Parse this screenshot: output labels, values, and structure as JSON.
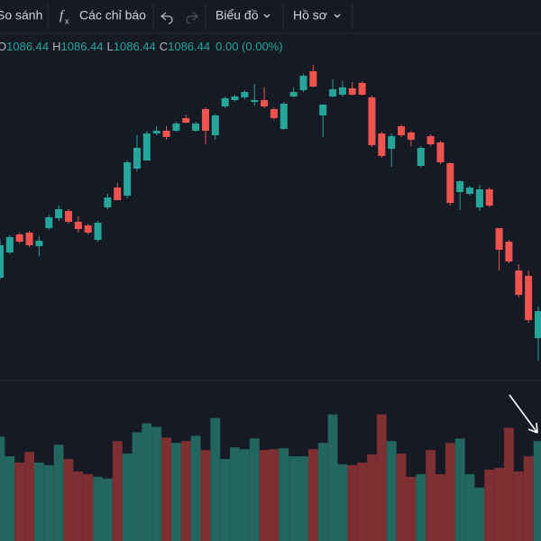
{
  "toolbar": {
    "compare": "So sánh",
    "indicators": "Các chỉ báo",
    "chart": "Biểu đồ",
    "profile": "Hồ sơ"
  },
  "chart_data": {
    "type": "candlestick",
    "legend": {
      "open_label": "O",
      "open": 1086.44,
      "high_label": "H",
      "high": 1086.44,
      "low_label": "L",
      "low": 1086.44,
      "close_label": "C",
      "close": 1086.44,
      "change": "0.00 (0.00%)"
    },
    "up_color": "#26a69a",
    "down_color": "#ef5350",
    "volume_up_color": "#22665f",
    "volume_down_color": "#7d2f31",
    "ylim": [
      0,
      380
    ],
    "volume_ylim": [
      0,
      180
    ],
    "candles": {
      "open": [
        112,
        140,
        160,
        162,
        147,
        167,
        178,
        186,
        174,
        170,
        154,
        190,
        212,
        203,
        233,
        242,
        272,
        275,
        275,
        289,
        275,
        299,
        270,
        302,
        309,
        312,
        307,
        309,
        299,
        277,
        313,
        320,
        341,
        292,
        313,
        315,
        322,
        328,
        312,
        272,
        255,
        280,
        273,
        236,
        269,
        262,
        239,
        207,
        205,
        190,
        210,
        167,
        152,
        120,
        114,
        45
      ],
      "high": [
        155,
        159,
        162,
        164,
        158,
        182,
        192,
        188,
        180,
        172,
        175,
        205,
        217,
        242,
        270,
        275,
        280,
        280,
        285,
        293,
        285,
        301,
        294,
        313,
        315,
        320,
        327,
        323,
        301,
        307,
        323,
        338,
        348,
        304,
        332,
        330,
        329,
        330,
        314,
        274,
        272,
        282,
        275,
        258,
        271,
        264,
        240,
        220,
        214,
        215,
        212,
        167,
        154,
        127,
        120,
        80
      ],
      "low": [
        110,
        138,
        150,
        146,
        136,
        165,
        175,
        172,
        162,
        160,
        152,
        188,
        198,
        200,
        230,
        242,
        270,
        265,
        274,
        283,
        274,
        260,
        265,
        300,
        307,
        310,
        303,
        300,
        287,
        276,
        312,
        318,
        323,
        268,
        312,
        313,
        314,
        314,
        257,
        245,
        235,
        268,
        258,
        234,
        258,
        238,
        192,
        187,
        203,
        186,
        190,
        120,
        128,
        90,
        62,
        20
      ],
      "close": [
        148,
        157,
        152,
        148,
        153,
        179,
        188,
        174,
        166,
        162,
        173,
        201,
        198,
        240,
        256,
        272,
        275,
        268,
        283,
        284,
        283,
        275,
        292,
        311,
        313,
        318,
        309,
        302,
        289,
        305,
        318,
        336,
        324,
        304,
        321,
        323,
        315,
        315,
        259,
        247,
        269,
        270,
        265,
        256,
        260,
        240,
        195,
        219,
        212,
        210,
        192,
        143,
        130,
        93,
        65,
        75
      ]
    },
    "volume": [
      117,
      95,
      88,
      100,
      88,
      85,
      108,
      92,
      78,
      75,
      72,
      70,
      112,
      98,
      122,
      132,
      128,
      116,
      110,
      112,
      118,
      102,
      138,
      92,
      105,
      103,
      115,
      102,
      103,
      104,
      95,
      95,
      103,
      110,
      142,
      86,
      85,
      88,
      97,
      142,
      112,
      98,
      72,
      75,
      102,
      75,
      110,
      115,
      75,
      60,
      80,
      82,
      127,
      78,
      95,
      112
    ]
  }
}
